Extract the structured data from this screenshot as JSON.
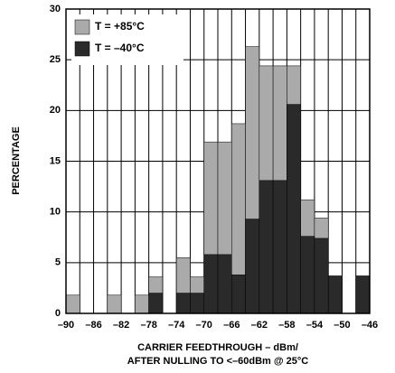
{
  "chart_data": {
    "type": "histogram",
    "bins": [
      -90,
      -88,
      -86,
      -84,
      -82,
      -80,
      -78,
      -76,
      -74,
      -72,
      -70,
      -68,
      -66,
      -64,
      -62,
      -60,
      -58,
      -56,
      -54,
      -52,
      -50,
      -48,
      -46
    ],
    "series": [
      {
        "name": "T = +85°C",
        "color": "#aaaaaa",
        "values": [
          1.8,
          0,
          0,
          1.8,
          0,
          1.8,
          3.6,
          0,
          5.5,
          3.6,
          16.9,
          16.9,
          18.7,
          26.3,
          24.4,
          24.4,
          24.4,
          11.2,
          9.4,
          0,
          0,
          0
        ]
      },
      {
        "name": "T = –40°C",
        "color": "#2a2a2a",
        "values": [
          0,
          0,
          0,
          0,
          0,
          0,
          2.0,
          0,
          2.0,
          2.0,
          5.8,
          5.8,
          3.8,
          9.3,
          13.1,
          13.1,
          20.6,
          7.6,
          7.4,
          3.7,
          0,
          3.7
        ]
      }
    ],
    "xlim": [
      -90,
      -46
    ],
    "xticks": [
      {
        "value": -90,
        "label": "–90"
      },
      {
        "value": -86,
        "label": "–86"
      },
      {
        "value": -82,
        "label": "–82"
      },
      {
        "value": -78,
        "label": "–78"
      },
      {
        "value": -74,
        "label": "–74"
      },
      {
        "value": -70,
        "label": "–70"
      },
      {
        "value": -66,
        "label": "–66"
      },
      {
        "value": -62,
        "label": "–62"
      },
      {
        "value": -58,
        "label": "–58"
      },
      {
        "value": -54,
        "label": "–54"
      },
      {
        "value": -50,
        "label": "–50"
      },
      {
        "value": -46,
        "label": "–46"
      }
    ],
    "xminorticks": [
      -88,
      -84,
      -80,
      -76,
      -72,
      -68,
      -64,
      -60,
      -56,
      -52,
      -48
    ],
    "ylim": [
      0,
      30
    ],
    "yticks": [
      0,
      5,
      10,
      15,
      20,
      25,
      30
    ],
    "grid": true,
    "legend": "upper left",
    "ylabel": "PERCENTAGE",
    "xlabel": [
      "CARRIER FEEDTHROUGH – dBm/",
      "AFTER NULLING TO <–60dBm @ 25°C"
    ]
  }
}
